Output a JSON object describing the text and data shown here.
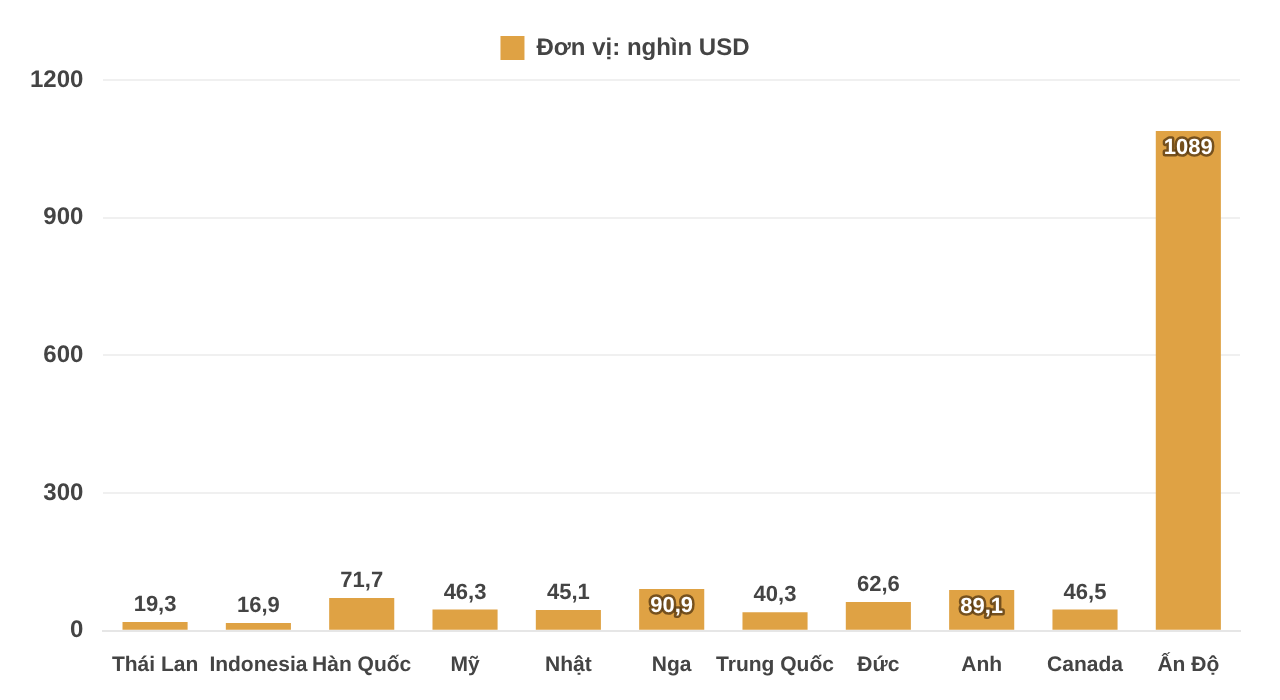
{
  "chart_data": {
    "type": "bar",
    "categories": [
      "Thái Lan",
      "Indonesia",
      "Hàn Quốc",
      "Mỹ",
      "Nhật",
      "Nga",
      "Trung Quốc",
      "Đức",
      "Anh",
      "Canada",
      "Ấn Độ"
    ],
    "series": [
      {
        "name": "Đơn vị: nghìn USD",
        "color": "#dfa244",
        "values": [
          19.3,
          16.9,
          71.7,
          46.3,
          45.1,
          90.9,
          40.3,
          62.6,
          89.1,
          46.5,
          1089
        ],
        "value_labels": [
          "19,3",
          "16,9",
          "71,7",
          "46,3",
          "45,1",
          "90,9",
          "40,3",
          "62,6",
          "89,1",
          "46,5",
          "1089"
        ]
      }
    ],
    "ylim": [
      0,
      1200
    ],
    "yticks": [
      0,
      300,
      600,
      900,
      1200
    ],
    "grid": "y",
    "legend": "top"
  }
}
